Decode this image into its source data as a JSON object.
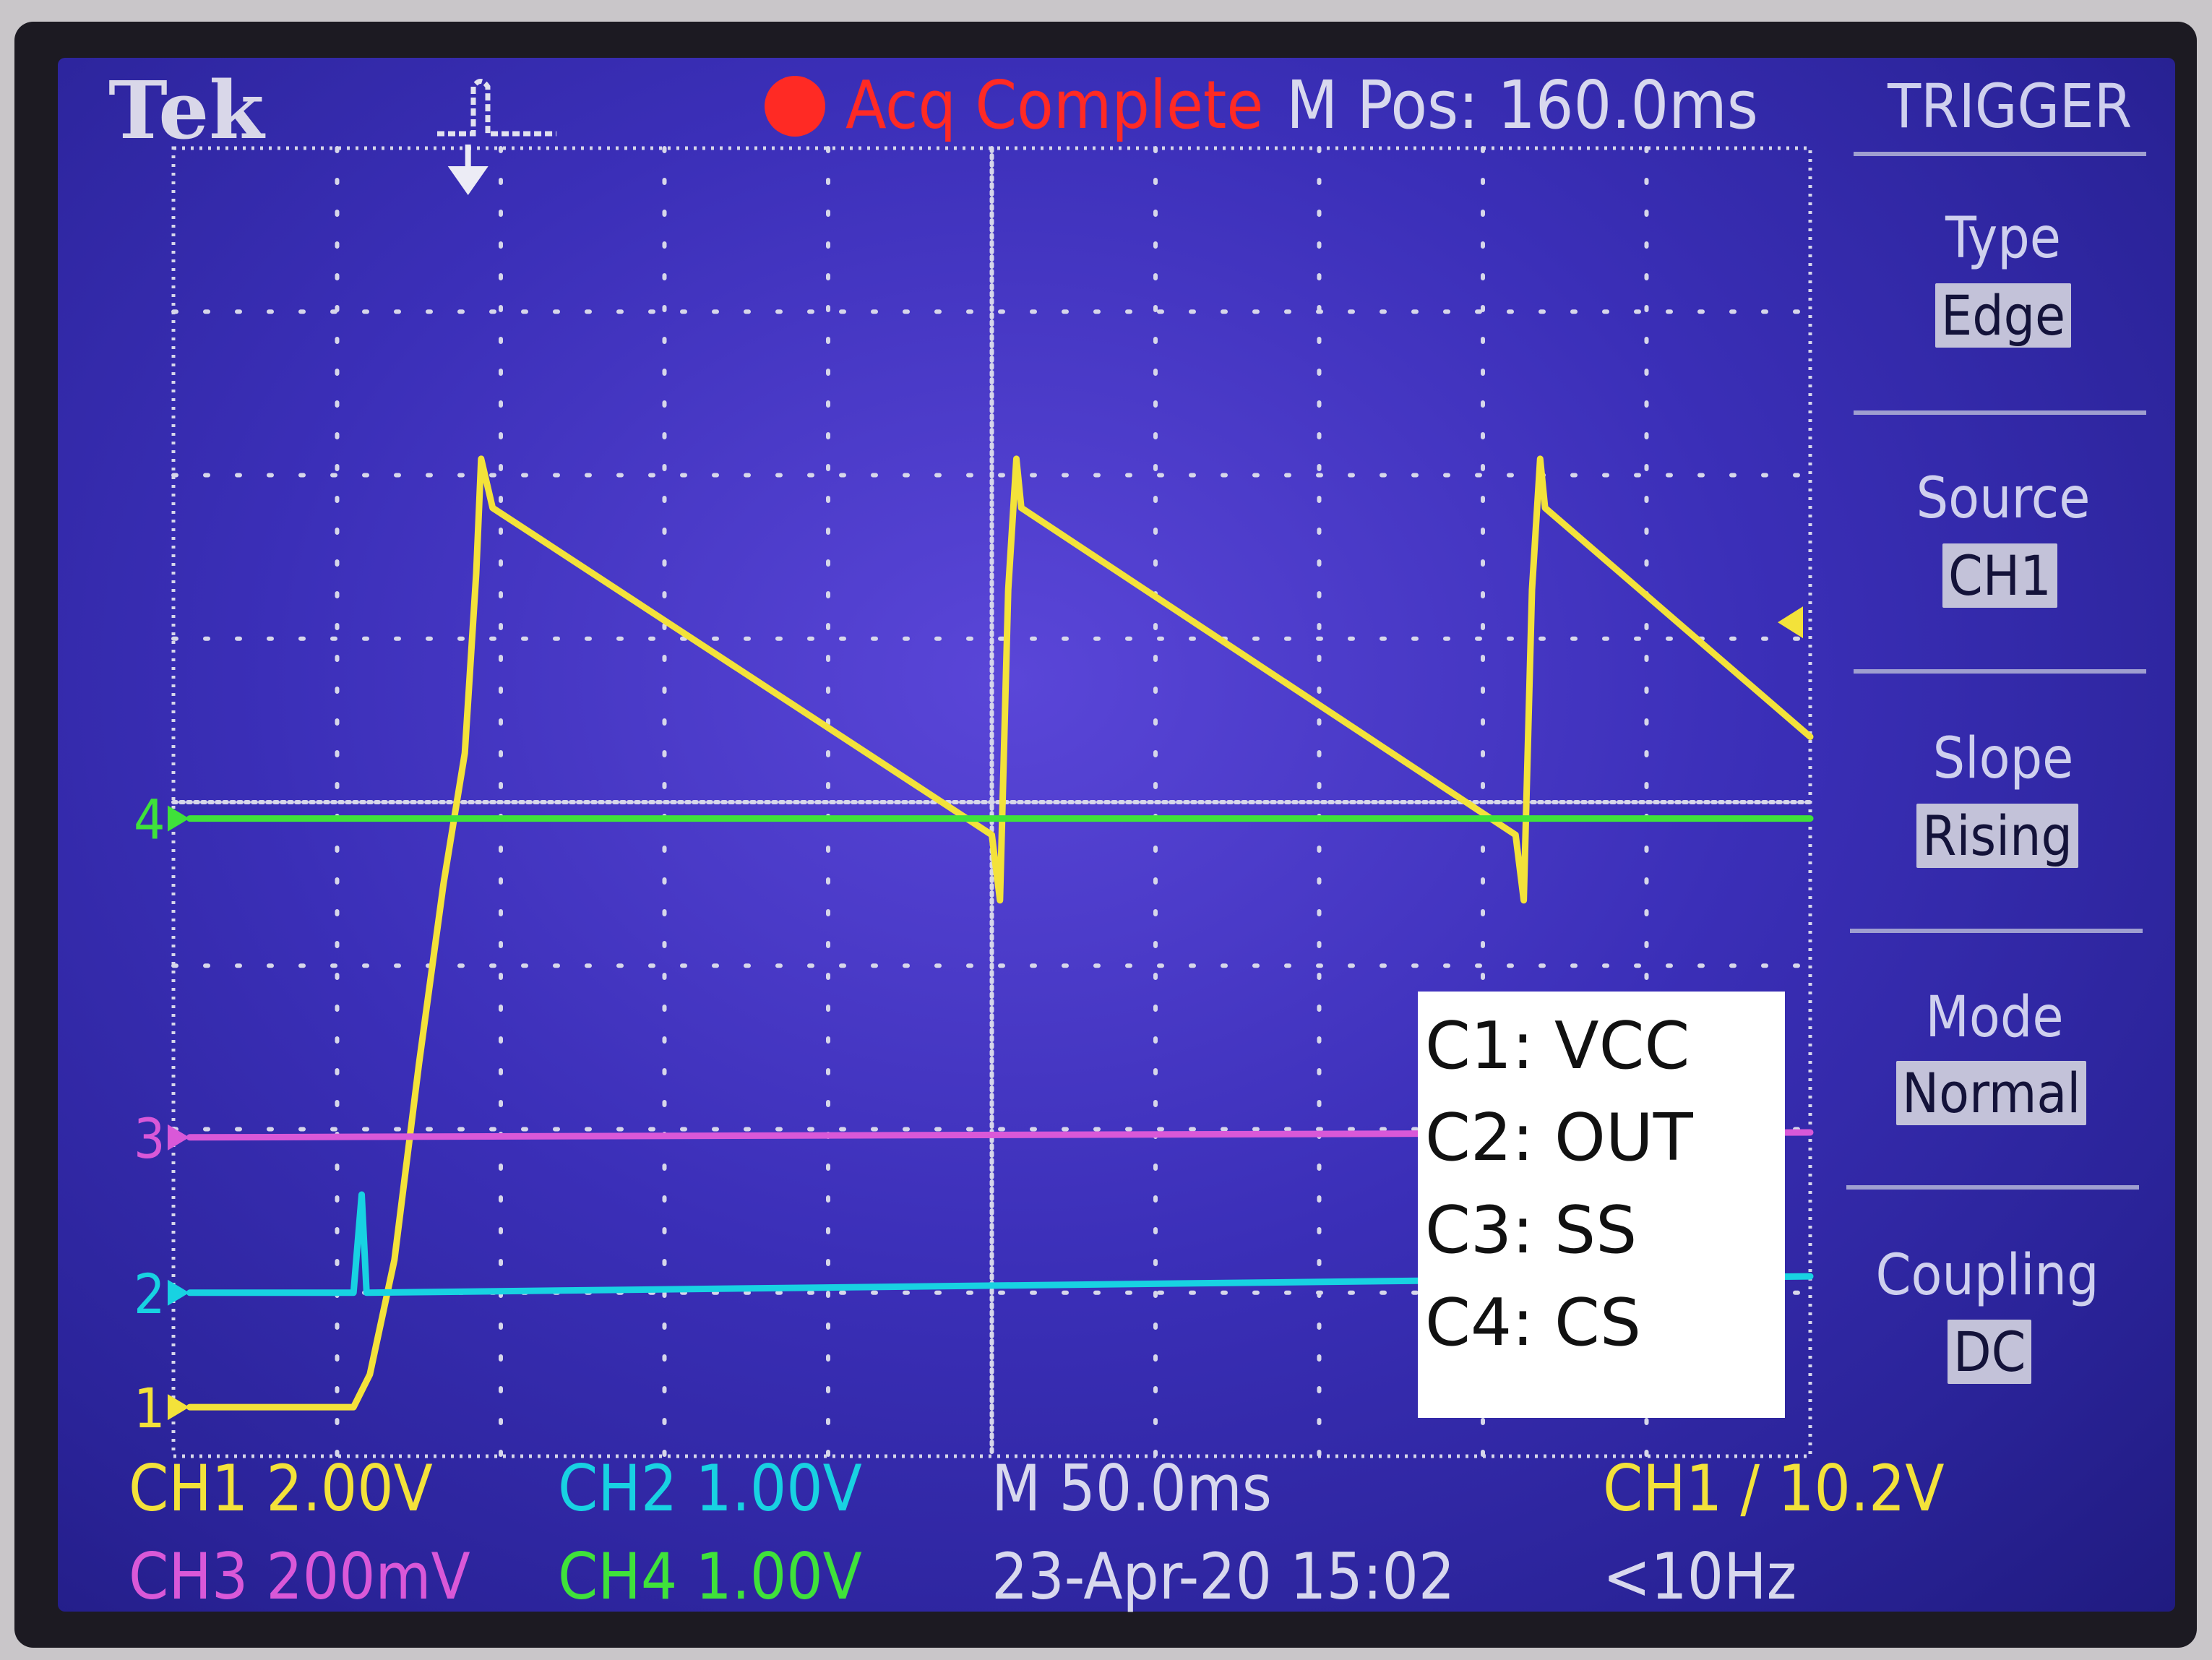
{
  "header": {
    "brand": "Tek",
    "status": "Acq Complete",
    "m_pos": "M Pos: 160.0ms",
    "menu_title": "TRIGGER",
    "status_color": "#ff2a24"
  },
  "trigger_menu": [
    {
      "label": "Type",
      "value": "Edge"
    },
    {
      "label": "Source",
      "value": "CH1"
    },
    {
      "label": "Slope",
      "value": "Rising"
    },
    {
      "label": "Mode",
      "value": "Normal"
    },
    {
      "label": "Coupling",
      "value": "DC"
    }
  ],
  "footer": {
    "ch1": "CH1  2.00V",
    "ch2": "CH2  1.00V",
    "ch3": "CH3  200mV",
    "ch4": "CH4  1.00V",
    "timebase": "M 50.0ms",
    "datetime": "23-Apr-20 15:02",
    "trigger": "CH1  ∕  10.2V",
    "frequency": "<10Hz"
  },
  "legend": [
    "C1: VCC",
    "C2: OUT",
    "C3: SS",
    "C4: CS"
  ],
  "chart_data": {
    "type": "line",
    "title": "",
    "xlabel": "",
    "ylabel": "",
    "xlim": [
      0,
      10
    ],
    "ylim": [
      0,
      8
    ],
    "grid": true,
    "x_divisions": 10,
    "y_divisions": 8,
    "ch_markers": {
      "1": "1",
      "2": "2",
      "3": "3",
      "4": "4"
    },
    "series": [
      {
        "color": "#f3e23a",
        "marker": "1",
        "points": [
          [
            0.1,
            0.3
          ],
          [
            1.1,
            0.3
          ],
          [
            1.2,
            0.5
          ],
          [
            1.35,
            1.2
          ],
          [
            1.5,
            2.4
          ],
          [
            1.65,
            3.5
          ],
          [
            1.78,
            4.3
          ],
          [
            1.85,
            5.4
          ],
          [
            1.88,
            6.1
          ],
          [
            1.95,
            5.8
          ],
          [
            5.0,
            3.8
          ],
          [
            5.05,
            3.4
          ],
          [
            5.1,
            5.3
          ],
          [
            5.15,
            6.1
          ],
          [
            5.18,
            5.8
          ],
          [
            8.2,
            3.8
          ],
          [
            8.25,
            3.4
          ],
          [
            8.3,
            5.3
          ],
          [
            8.35,
            6.1
          ],
          [
            8.38,
            5.8
          ],
          [
            10.0,
            4.4
          ]
        ]
      },
      {
        "color": "#18d2e2",
        "marker": "2",
        "points": [
          [
            0.1,
            1.0
          ],
          [
            1.1,
            1.0
          ],
          [
            1.15,
            1.6
          ],
          [
            1.18,
            1.0
          ],
          [
            10.0,
            1.1
          ]
        ]
      },
      {
        "color": "#d958d8",
        "marker": "3",
        "points": [
          [
            0.1,
            1.95
          ],
          [
            10.0,
            1.98
          ]
        ]
      },
      {
        "color": "#3fe23a",
        "marker": "4",
        "points": [
          [
            0.1,
            3.9
          ],
          [
            10.0,
            3.9
          ]
        ]
      }
    ],
    "trigger_level_div": 5.1,
    "trigger_position_div": 1.8
  }
}
